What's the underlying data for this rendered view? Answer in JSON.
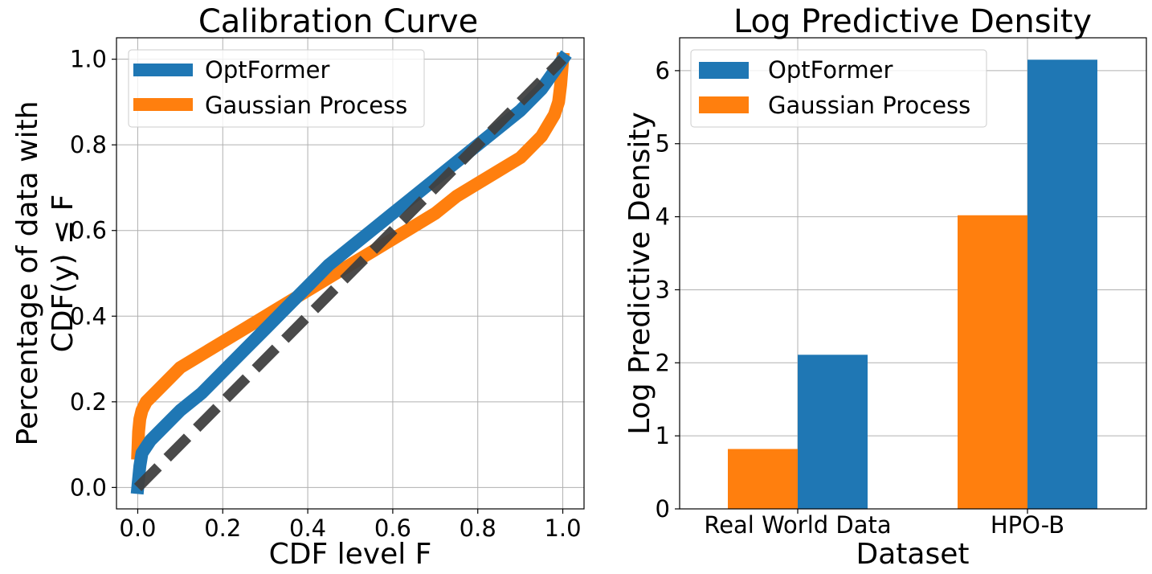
{
  "chart_data": [
    {
      "type": "line",
      "title": "Calibration Curve",
      "xlabel": "CDF level F",
      "ylabel_line1": "Percentage of data with",
      "ylabel_line2": "CDF(y) ≤ F",
      "xlim": [
        -0.05,
        1.05
      ],
      "ylim": [
        -0.05,
        1.05
      ],
      "xticks": [
        0.0,
        0.2,
        0.4,
        0.6,
        0.8,
        1.0
      ],
      "xtick_labels": [
        "0.0",
        "0.2",
        "0.4",
        "0.6",
        "0.8",
        "1.0"
      ],
      "yticks": [
        0.0,
        0.2,
        0.4,
        0.6,
        0.8,
        1.0
      ],
      "ytick_labels": [
        "0.0",
        "0.2",
        "0.4",
        "0.6",
        "0.8",
        "1.0"
      ],
      "grid": true,
      "legend_position": "top-left",
      "series": [
        {
          "name": "Gaussian Process",
          "color": "#ff7f0e",
          "x": [
            0.0,
            0.002,
            0.005,
            0.01,
            0.02,
            0.04,
            0.07,
            0.1,
            0.15,
            0.2,
            0.25,
            0.3,
            0.35,
            0.4,
            0.45,
            0.5,
            0.55,
            0.6,
            0.65,
            0.7,
            0.75,
            0.8,
            0.85,
            0.9,
            0.95,
            0.98,
            0.99,
            0.995,
            1.0
          ],
          "y": [
            0.08,
            0.13,
            0.16,
            0.18,
            0.2,
            0.22,
            0.25,
            0.28,
            0.31,
            0.34,
            0.37,
            0.4,
            0.43,
            0.46,
            0.49,
            0.52,
            0.55,
            0.58,
            0.61,
            0.64,
            0.68,
            0.71,
            0.74,
            0.77,
            0.82,
            0.87,
            0.9,
            0.94,
            1.0
          ]
        },
        {
          "name": "OptFormer",
          "color": "#1f77b4",
          "x": [
            0.0,
            0.005,
            0.01,
            0.03,
            0.06,
            0.1,
            0.15,
            0.2,
            0.25,
            0.3,
            0.35,
            0.4,
            0.45,
            0.5,
            0.55,
            0.6,
            0.65,
            0.7,
            0.75,
            0.8,
            0.85,
            0.9,
            0.95,
            1.0
          ],
          "y": [
            0.0,
            0.05,
            0.08,
            0.11,
            0.14,
            0.18,
            0.22,
            0.27,
            0.32,
            0.37,
            0.42,
            0.47,
            0.52,
            0.56,
            0.6,
            0.64,
            0.68,
            0.72,
            0.76,
            0.8,
            0.84,
            0.88,
            0.93,
            1.0
          ]
        },
        {
          "name": "",
          "color": "#404040",
          "style": "dashed",
          "x": [
            0.0,
            1.0
          ],
          "y": [
            0.0,
            1.0
          ]
        }
      ],
      "legend": [
        {
          "label": "OptFormer",
          "color": "#1f77b4"
        },
        {
          "label": "Gaussian Process",
          "color": "#ff7f0e"
        }
      ]
    },
    {
      "type": "bar",
      "title": "Log Predictive Density",
      "xlabel": "Dataset",
      "ylabel": "Log Predictive Density",
      "categories": [
        "Real World Data",
        "HPO-B"
      ],
      "ylim": [
        0,
        6.45
      ],
      "yticks": [
        0,
        1,
        2,
        3,
        4,
        5,
        6
      ],
      "ytick_labels": [
        "0",
        "1",
        "2",
        "3",
        "4",
        "5",
        "6"
      ],
      "grid": true,
      "legend_position": "top-left",
      "series": [
        {
          "name": "Gaussian Process",
          "color": "#ff7f0e",
          "values": [
            0.82,
            4.02
          ]
        },
        {
          "name": "OptFormer",
          "color": "#1f77b4",
          "values": [
            2.11,
            6.15
          ]
        }
      ],
      "legend": [
        {
          "label": "OptFormer",
          "color": "#1f77b4"
        },
        {
          "label": "Gaussian Process",
          "color": "#ff7f0e"
        }
      ]
    }
  ]
}
